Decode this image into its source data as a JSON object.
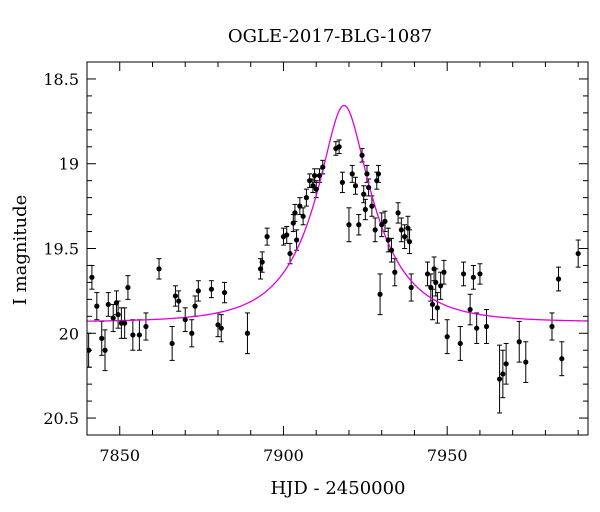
{
  "chart_data": {
    "type": "scatter",
    "title": "OGLE-2017-BLG-1087",
    "xlabel": "HJD - 2450000",
    "ylabel": "I magnitude",
    "xlim": [
      7840,
      7993
    ],
    "ylim": [
      20.6,
      18.4
    ],
    "y_inverted": true,
    "xticks_major": [
      7850,
      7900,
      7950
    ],
    "xtick_labels": [
      "7850",
      "7900",
      "7950"
    ],
    "yticks_major": [
      18.5,
      19,
      19.5,
      20,
      20.5
    ],
    "ytick_labels": [
      "18.5",
      "19",
      "19.5",
      "20",
      "20.5"
    ],
    "grid": false,
    "colors": {
      "points": "#000000",
      "model": "#e000e0",
      "axes": "#000000"
    },
    "series": [
      {
        "kind": "points_with_error_bars",
        "points": [
          [
            7840.5,
            20.1,
            0.1
          ],
          [
            7841.5,
            19.67,
            0.07
          ],
          [
            7843,
            19.84,
            0.08
          ],
          [
            7844.5,
            20.03,
            0.1
          ],
          [
            7845.5,
            20.1,
            0.12
          ],
          [
            7846.5,
            19.83,
            0.07
          ],
          [
            7848,
            19.91,
            0.08
          ],
          [
            7849,
            19.82,
            0.07
          ],
          [
            7849.5,
            19.89,
            0.08
          ],
          [
            7850.5,
            19.94,
            0.09
          ],
          [
            7851.5,
            19.94,
            0.09
          ],
          [
            7852.5,
            19.73,
            0.07
          ],
          [
            7854,
            20.01,
            0.09
          ],
          [
            7856,
            20.01,
            0.09
          ],
          [
            7858,
            19.96,
            0.08
          ],
          [
            7862,
            19.62,
            0.06
          ],
          [
            7866,
            20.06,
            0.1
          ],
          [
            7867,
            19.78,
            0.06
          ],
          [
            7868,
            19.81,
            0.06
          ],
          [
            7870,
            19.92,
            0.07
          ],
          [
            7872,
            20.0,
            0.08
          ],
          [
            7873,
            19.84,
            0.06
          ],
          [
            7874,
            19.75,
            0.06
          ],
          [
            7878,
            19.74,
            0.05
          ],
          [
            7880,
            19.95,
            0.07
          ],
          [
            7881,
            19.97,
            0.08
          ],
          [
            7882,
            19.76,
            0.06
          ],
          [
            7889,
            20.0,
            0.12
          ],
          [
            7893,
            19.62,
            0.06
          ],
          [
            7893.5,
            19.58,
            0.06
          ],
          [
            7895,
            19.43,
            0.05
          ],
          [
            7900,
            19.43,
            0.05
          ],
          [
            7901,
            19.42,
            0.05
          ],
          [
            7902,
            19.53,
            0.06
          ],
          [
            7903,
            19.35,
            0.05
          ],
          [
            7903.5,
            19.29,
            0.05
          ],
          [
            7904,
            19.45,
            0.06
          ],
          [
            7905,
            19.25,
            0.05
          ],
          [
            7906,
            19.31,
            0.05
          ],
          [
            7907,
            19.2,
            0.05
          ],
          [
            7908,
            19.1,
            0.04
          ],
          [
            7909,
            19.13,
            0.04
          ],
          [
            7909.5,
            19.07,
            0.04
          ],
          [
            7910,
            19.15,
            0.05
          ],
          [
            7911,
            19.07,
            0.04
          ],
          [
            7912,
            19.02,
            0.04
          ],
          [
            7916,
            18.91,
            0.04
          ],
          [
            7917,
            18.9,
            0.04
          ],
          [
            7918,
            19.11,
            0.06
          ],
          [
            7920,
            19.36,
            0.1
          ],
          [
            7921,
            19.06,
            0.05
          ],
          [
            7922,
            19.13,
            0.05
          ],
          [
            7923,
            19.36,
            0.06
          ],
          [
            7924,
            18.95,
            0.04
          ],
          [
            7924.5,
            19.18,
            0.05
          ],
          [
            7925,
            19.27,
            0.06
          ],
          [
            7925.5,
            19.06,
            0.05
          ],
          [
            7926,
            19.14,
            0.05
          ],
          [
            7927,
            19.25,
            0.06
          ],
          [
            7928,
            19.39,
            0.07
          ],
          [
            7928.5,
            19.1,
            0.05
          ],
          [
            7929,
            19.06,
            0.05
          ],
          [
            7929.5,
            19.77,
            0.12
          ],
          [
            7930,
            19.36,
            0.07
          ],
          [
            7931,
            19.34,
            0.06
          ],
          [
            7932,
            19.45,
            0.07
          ],
          [
            7933,
            19.51,
            0.07
          ],
          [
            7934,
            19.64,
            0.08
          ],
          [
            7935,
            19.29,
            0.06
          ],
          [
            7936,
            19.39,
            0.07
          ],
          [
            7937,
            19.43,
            0.07
          ],
          [
            7938,
            19.38,
            0.07
          ],
          [
            7938.5,
            19.46,
            0.07
          ],
          [
            7939,
            19.73,
            0.08
          ],
          [
            7944,
            19.65,
            0.07
          ],
          [
            7945,
            19.73,
            0.08
          ],
          [
            7945.5,
            19.83,
            0.09
          ],
          [
            7946,
            19.62,
            0.07
          ],
          [
            7946.5,
            19.7,
            0.08
          ],
          [
            7947,
            19.85,
            0.09
          ],
          [
            7948,
            19.72,
            0.08
          ],
          [
            7949,
            19.64,
            0.07
          ],
          [
            7950,
            20.02,
            0.1
          ],
          [
            7954,
            20.06,
            0.1
          ],
          [
            7955,
            19.65,
            0.07
          ],
          [
            7957,
            19.86,
            0.09
          ],
          [
            7958,
            19.67,
            0.07
          ],
          [
            7959,
            19.97,
            0.09
          ],
          [
            7960,
            19.65,
            0.06
          ],
          [
            7962,
            19.96,
            0.1
          ],
          [
            7966,
            20.27,
            0.2
          ],
          [
            7967,
            20.24,
            0.14
          ],
          [
            7968,
            20.18,
            0.12
          ],
          [
            7972,
            20.05,
            0.12
          ],
          [
            7974,
            20.17,
            0.12
          ],
          [
            7982,
            19.96,
            0.08
          ],
          [
            7984,
            19.68,
            0.07
          ],
          [
            7985,
            20.15,
            0.1
          ],
          [
            7990,
            19.53,
            0.08
          ]
        ]
      },
      {
        "kind": "model_curve",
        "baseline_mag": 19.934,
        "peak_time": 7918.5,
        "u0": 0.32,
        "tE": 18.5
      }
    ]
  }
}
